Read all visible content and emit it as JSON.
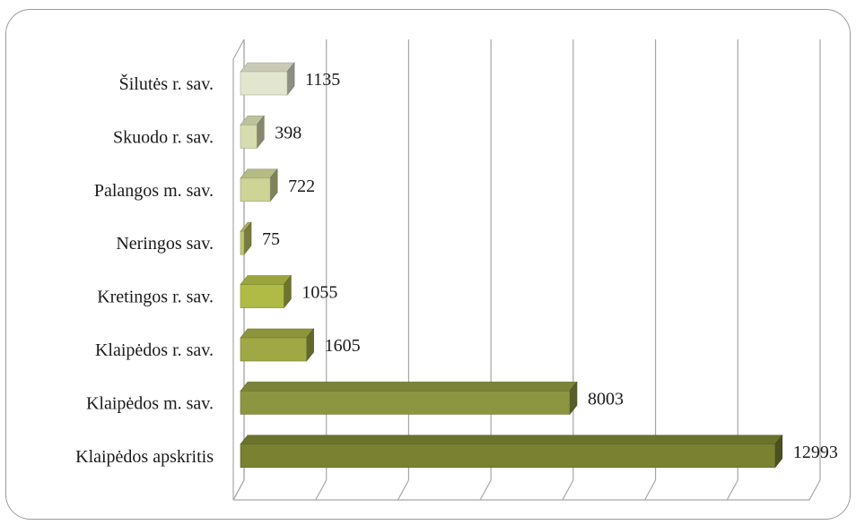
{
  "chart_data": {
    "type": "bar",
    "orientation": "horizontal",
    "style": "3d",
    "categories": [
      "Šilutės r. sav.",
      "Skuodo r. sav.",
      "Palangos m. sav.",
      "Neringos sav.",
      "Kretingos r. sav.",
      "Klaipėdos r. sav.",
      "Klaipėdos m. sav.",
      "Klaipėdos apskritis"
    ],
    "values": [
      1135,
      398,
      722,
      75,
      1055,
      1605,
      8003,
      12993
    ],
    "value_labels": [
      "1135",
      "398",
      "722",
      "75",
      "1055",
      "1605",
      "8003",
      "12993"
    ],
    "bar_colors": [
      "#e3e6cf",
      "#d6dcb0",
      "#cdd495",
      "#bfc86a",
      "#b0bb45",
      "#9fa844",
      "#8c9640",
      "#7a8232"
    ],
    "xlim": [
      0,
      14000
    ],
    "grid": true,
    "legend": "none"
  }
}
